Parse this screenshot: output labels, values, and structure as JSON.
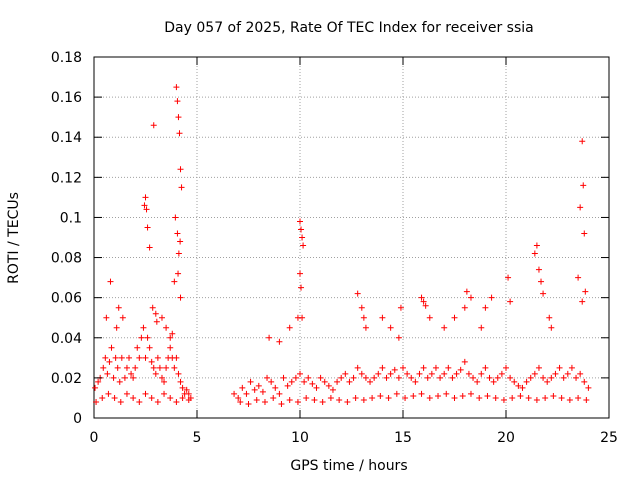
{
  "chart_data": {
    "type": "scatter",
    "title": "Day 057 of 2025, Rate Of TEC Index for receiver ssia",
    "xlabel": "GPS time / hours",
    "ylabel": "ROTI / TECUs",
    "xlim": [
      0,
      25
    ],
    "ylim": [
      0,
      0.18
    ],
    "xticks": [
      0,
      5,
      10,
      15,
      20,
      25
    ],
    "yticks": [
      0,
      0.02,
      0.04,
      0.06,
      0.08,
      0.1,
      0.12,
      0.14,
      0.16,
      0.18
    ],
    "xtick_labels": [
      "0",
      "5",
      "10",
      "15",
      "20",
      "25"
    ],
    "ytick_labels": [
      "0",
      "0.02",
      "0.04",
      "0.06",
      "0.08",
      "0.1",
      "0.12",
      "0.14",
      "0.16",
      "0.18"
    ],
    "grid": true,
    "marker": "plus",
    "color": "#ff0000",
    "series": [
      {
        "x": [
          0.05,
          0.2,
          0.3,
          0.45,
          0.55,
          0.65,
          0.75,
          0.85,
          0.95,
          1.05,
          1.15,
          1.25,
          1.35,
          1.5,
          1.6,
          1.7,
          1.8,
          1.9,
          2.0,
          2.1,
          2.2,
          2.3,
          2.4,
          2.5,
          2.6,
          2.7,
          2.8,
          2.9,
          3.0,
          3.1,
          3.2,
          3.3,
          3.4,
          3.5,
          3.6,
          3.7,
          3.8,
          3.9,
          4.0,
          4.1,
          4.2,
          4.3,
          4.4,
          4.5,
          4.6,
          4.7,
          0.1,
          0.4,
          0.7,
          1.0,
          1.3,
          1.6,
          1.9,
          2.2,
          2.5,
          2.8,
          3.1,
          3.4,
          3.7,
          4.0,
          4.3,
          4.6,
          0.6,
          0.8,
          1.1,
          1.2,
          1.4,
          2.45,
          2.5,
          2.55,
          2.9,
          3.0,
          3.05,
          3.9,
          3.95,
          4.0,
          4.05,
          4.1,
          4.15,
          4.2,
          4.25,
          2.85,
          2.6,
          2.7,
          3.3,
          3.5,
          3.7,
          3.8,
          4.05,
          4.08,
          4.12,
          4.18,
          4.2,
          6.8,
          7.0,
          7.2,
          7.4,
          7.6,
          7.8,
          8.0,
          8.2,
          8.4,
          8.6,
          8.8,
          9.0,
          9.2,
          9.4,
          9.6,
          9.8,
          10.0,
          10.2,
          10.4,
          10.6,
          10.8,
          11.0,
          11.2,
          11.4,
          11.6,
          11.8,
          12.0,
          12.2,
          12.4,
          12.6,
          12.8,
          13.0,
          13.2,
          13.4,
          13.6,
          13.8,
          14.0,
          14.2,
          14.4,
          14.6,
          14.8,
          15.0,
          15.2,
          15.4,
          15.6,
          15.8,
          16.0,
          16.2,
          16.4,
          16.6,
          16.8,
          17.0,
          17.2,
          17.4,
          17.6,
          17.8,
          18.0,
          18.2,
          18.4,
          18.6,
          18.8,
          19.0,
          19.2,
          19.4,
          19.6,
          19.8,
          20.0,
          20.2,
          20.4,
          20.6,
          20.8,
          21.0,
          21.2,
          21.4,
          21.6,
          21.8,
          22.0,
          22.2,
          22.4,
          22.6,
          22.8,
          23.0,
          23.2,
          23.4,
          23.6,
          23.8,
          24.0,
          7.1,
          7.5,
          7.9,
          8.3,
          8.7,
          9.1,
          9.5,
          9.9,
          10.3,
          10.7,
          11.1,
          11.5,
          11.9,
          12.3,
          12.7,
          13.1,
          13.5,
          13.9,
          14.3,
          14.7,
          15.1,
          15.5,
          15.9,
          16.3,
          16.7,
          17.1,
          17.5,
          17.9,
          18.3,
          18.7,
          19.1,
          19.5,
          19.9,
          20.3,
          20.7,
          21.1,
          21.5,
          21.9,
          22.3,
          22.7,
          23.1,
          23.5,
          23.9,
          8.5,
          9.0,
          9.5,
          9.9,
          10.0,
          10.05,
          10.1,
          10.15,
          10.0,
          10.05,
          10.1,
          12.8,
          13.0,
          13.1,
          13.2,
          14.0,
          14.4,
          14.8,
          14.9,
          15.9,
          16.0,
          16.1,
          16.3,
          17.0,
          17.5,
          18.0,
          18.1,
          18.3,
          18.8,
          19.0,
          19.3,
          20.1,
          20.2,
          21.4,
          21.5,
          21.6,
          21.7,
          21.8,
          22.1,
          22.2,
          23.5,
          23.6,
          23.7,
          23.75,
          23.8,
          23.85,
          23.7
        ],
        "y": [
          0.015,
          0.018,
          0.02,
          0.025,
          0.03,
          0.022,
          0.028,
          0.035,
          0.02,
          0.03,
          0.025,
          0.018,
          0.03,
          0.02,
          0.025,
          0.03,
          0.022,
          0.02,
          0.025,
          0.035,
          0.03,
          0.04,
          0.045,
          0.03,
          0.04,
          0.035,
          0.028,
          0.025,
          0.022,
          0.03,
          0.025,
          0.02,
          0.018,
          0.025,
          0.03,
          0.035,
          0.03,
          0.025,
          0.03,
          0.022,
          0.018,
          0.015,
          0.012,
          0.014,
          0.012,
          0.01,
          0.008,
          0.01,
          0.012,
          0.01,
          0.008,
          0.012,
          0.01,
          0.008,
          0.012,
          0.01,
          0.008,
          0.012,
          0.01,
          0.008,
          0.01,
          0.009,
          0.05,
          0.068,
          0.045,
          0.055,
          0.05,
          0.106,
          0.11,
          0.104,
          0.146,
          0.052,
          0.048,
          0.068,
          0.1,
          0.165,
          0.158,
          0.15,
          0.142,
          0.124,
          0.115,
          0.055,
          0.095,
          0.085,
          0.05,
          0.045,
          0.04,
          0.042,
          0.092,
          0.072,
          0.082,
          0.088,
          0.06,
          0.012,
          0.01,
          0.015,
          0.012,
          0.018,
          0.014,
          0.016,
          0.013,
          0.02,
          0.018,
          0.015,
          0.012,
          0.02,
          0.016,
          0.018,
          0.02,
          0.022,
          0.018,
          0.02,
          0.017,
          0.015,
          0.02,
          0.018,
          0.016,
          0.014,
          0.018,
          0.02,
          0.022,
          0.018,
          0.02,
          0.025,
          0.022,
          0.02,
          0.018,
          0.02,
          0.022,
          0.025,
          0.02,
          0.022,
          0.024,
          0.02,
          0.025,
          0.022,
          0.02,
          0.018,
          0.022,
          0.025,
          0.02,
          0.022,
          0.025,
          0.02,
          0.022,
          0.025,
          0.02,
          0.022,
          0.024,
          0.028,
          0.022,
          0.02,
          0.018,
          0.022,
          0.025,
          0.02,
          0.018,
          0.02,
          0.022,
          0.025,
          0.02,
          0.018,
          0.016,
          0.015,
          0.018,
          0.02,
          0.022,
          0.025,
          0.02,
          0.018,
          0.02,
          0.022,
          0.025,
          0.02,
          0.022,
          0.025,
          0.02,
          0.022,
          0.018,
          0.015,
          0.008,
          0.007,
          0.009,
          0.008,
          0.01,
          0.007,
          0.009,
          0.008,
          0.01,
          0.009,
          0.008,
          0.01,
          0.009,
          0.008,
          0.01,
          0.009,
          0.01,
          0.011,
          0.01,
          0.012,
          0.01,
          0.011,
          0.012,
          0.01,
          0.011,
          0.012,
          0.01,
          0.011,
          0.012,
          0.01,
          0.011,
          0.01,
          0.009,
          0.01,
          0.011,
          0.01,
          0.009,
          0.01,
          0.011,
          0.01,
          0.009,
          0.01,
          0.009,
          0.04,
          0.038,
          0.045,
          0.05,
          0.098,
          0.094,
          0.09,
          0.086,
          0.072,
          0.065,
          0.05,
          0.062,
          0.055,
          0.05,
          0.045,
          0.05,
          0.045,
          0.04,
          0.055,
          0.06,
          0.058,
          0.056,
          0.05,
          0.045,
          0.05,
          0.055,
          0.063,
          0.06,
          0.045,
          0.055,
          0.06,
          0.07,
          0.058,
          0.082,
          0.086,
          0.074,
          0.068,
          0.062,
          0.05,
          0.045,
          0.07,
          0.105,
          0.138,
          0.116,
          0.092,
          0.063,
          0.058
        ]
      }
    ]
  }
}
